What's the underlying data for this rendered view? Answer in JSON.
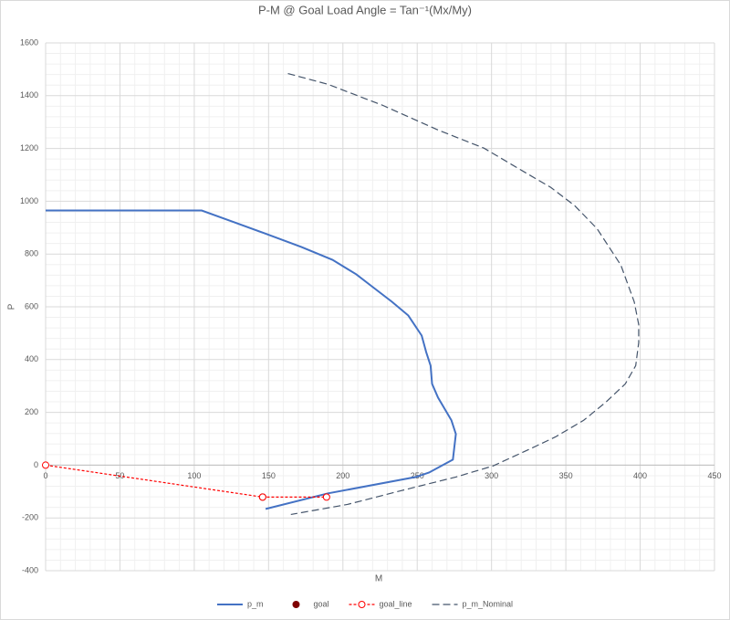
{
  "chart_data": {
    "type": "scatter",
    "title": "P-M @ Goal Load Angle = Tan⁻¹(Mx/My)",
    "x_label": "M",
    "y_label": "P",
    "xlim": [
      0,
      450
    ],
    "xticks": [
      0,
      50,
      100,
      150,
      200,
      250,
      300,
      350,
      400,
      450
    ],
    "ylim": [
      -400,
      1600
    ],
    "yticks": [
      -400,
      -200,
      0,
      200,
      400,
      600,
      800,
      1000,
      1200,
      1400,
      1600
    ],
    "grid": true,
    "minor_grid": true,
    "legend": "bottom",
    "series": [
      {
        "name": "p_m",
        "color": "#4472c4",
        "line": "solid",
        "marker": "none",
        "x": [
          0,
          105,
          147,
          172,
          193,
          209,
          221,
          233,
          244,
          253,
          256,
          259,
          260,
          264,
          273,
          276,
          274,
          258,
          249,
          190,
          148
        ],
        "values": [
          965,
          965,
          879,
          827,
          778,
          723,
          671,
          619,
          567,
          491,
          429,
          377,
          308,
          256,
          170,
          118,
          21,
          -28,
          -45,
          -107,
          -166
        ]
      },
      {
        "name": "goal",
        "color": "#7f0000",
        "line": "none",
        "marker": "filled",
        "x": [
          146
        ],
        "values": [
          -121
        ]
      },
      {
        "name": "goal_line",
        "color": "#ff0000",
        "line": "dashed-fine",
        "marker": "hollow",
        "x": [
          0,
          146,
          189
        ],
        "values": [
          0,
          -121,
          -121
        ]
      },
      {
        "name": "p_m_Nominal",
        "color": "#44546a",
        "line": "dashed",
        "marker": "none",
        "x": [
          163,
          190,
          227,
          264,
          295,
          319,
          340,
          356,
          371,
          387,
          396,
          399,
          399,
          397,
          390,
          377,
          362,
          343,
          325,
          301,
          276,
          239,
          203,
          165
        ],
        "values": [
          1484,
          1443,
          1363,
          1270,
          1201,
          1121,
          1052,
          983,
          896,
          758,
          619,
          533,
          464,
          377,
          308,
          239,
          170,
          107,
          59,
          -3,
          -45,
          -97,
          -149,
          -187
        ]
      }
    ]
  }
}
